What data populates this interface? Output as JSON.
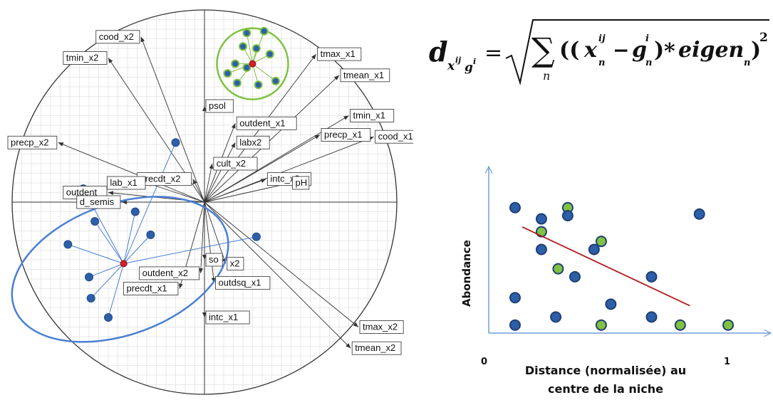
{
  "biplot": {
    "variables": [
      {
        "label": "cood_x2",
        "end": [
          -0.33,
          0.86
        ]
      },
      {
        "label": "tmin_x2",
        "end": [
          -0.5,
          0.75
        ]
      },
      {
        "label": "tmax_x1",
        "end": [
          0.58,
          0.77
        ]
      },
      {
        "label": "tmean_x1",
        "end": [
          0.7,
          0.66
        ]
      },
      {
        "label": "psol",
        "end": [
          0.0,
          0.5
        ]
      },
      {
        "label": "outdent_x1",
        "end": [
          0.16,
          0.41
        ]
      },
      {
        "label": "tmin_x1",
        "end": [
          0.75,
          0.45
        ]
      },
      {
        "label": "precp_x1",
        "end": [
          0.6,
          0.35
        ]
      },
      {
        "label": "cood_x1",
        "end": [
          0.88,
          0.34
        ]
      },
      {
        "label": "precp_x2",
        "end": [
          -0.76,
          0.31
        ]
      },
      {
        "label": "labx2",
        "end": [
          0.16,
          0.31
        ]
      },
      {
        "label": "cult_x2",
        "end": [
          0.04,
          0.2
        ]
      },
      {
        "label": "precdt_x2",
        "end": [
          -0.06,
          0.12
        ]
      },
      {
        "label": "lab_x1",
        "end": [
          -0.3,
          0.1
        ]
      },
      {
        "label": "intc_x2",
        "end": [
          0.32,
          0.12
        ]
      },
      {
        "label": "pH",
        "end": [
          0.45,
          0.1
        ]
      },
      {
        "label": "outdent",
        "end": [
          -0.5,
          0.05
        ]
      },
      {
        "label": "d_semis",
        "end": [
          -0.43,
          0.0
        ]
      },
      {
        "label": "so",
        "end": [
          0.0,
          -0.3
        ]
      },
      {
        "label": "x2",
        "end": [
          0.11,
          -0.32
        ]
      },
      {
        "label": "outdent_x2",
        "end": [
          -0.02,
          -0.37
        ]
      },
      {
        "label": "outdsq_x1",
        "end": [
          0.05,
          -0.42
        ]
      },
      {
        "label": "precdt_x1",
        "end": [
          -0.13,
          -0.45
        ]
      },
      {
        "label": "intc_x1",
        "end": [
          0.0,
          -0.6
        ]
      },
      {
        "label": "tmax_x2",
        "end": [
          0.8,
          -0.65
        ]
      },
      {
        "label": "tmean_x2",
        "end": [
          0.76,
          -0.76
        ]
      }
    ],
    "groups": [
      {
        "name": "green",
        "color": "#7fc241",
        "centroid": [
          0.25,
          0.72
        ],
        "points": [
          [
            0.22,
            0.88
          ],
          [
            0.31,
            0.89
          ],
          [
            0.2,
            0.81
          ],
          [
            0.27,
            0.8
          ],
          [
            0.34,
            0.77
          ],
          [
            0.16,
            0.72
          ],
          [
            0.22,
            0.7
          ],
          [
            0.37,
            0.63
          ],
          [
            0.17,
            0.62
          ],
          [
            0.28,
            0.61
          ],
          [
            0.12,
            0.67
          ]
        ]
      },
      {
        "name": "blue",
        "color": "#4a7fd4",
        "centroid": [
          -0.42,
          -0.32
        ],
        "points": [
          [
            -0.15,
            0.31
          ],
          [
            -0.63,
            0.07
          ],
          [
            -0.71,
            -0.22
          ],
          [
            -0.6,
            -0.39
          ],
          [
            -0.57,
            -0.1
          ],
          [
            -0.28,
            -0.17
          ],
          [
            -0.36,
            -0.05
          ],
          [
            -0.59,
            -0.5
          ],
          [
            -0.5,
            -0.6
          ],
          [
            0.27,
            -0.18
          ]
        ]
      }
    ]
  },
  "formula": {
    "lhs": "d",
    "lhs_sub_x": "x",
    "lhs_sub_x_sup": "ij",
    "lhs_sub_g": "g",
    "lhs_sub_g_sup": "i",
    "equals": "=",
    "sigma": "∑",
    "sigma_sub": "n",
    "open": "((",
    "x": "x",
    "x_sup": "ij",
    "x_sub": "n",
    "minus": "−",
    "g": "g",
    "g_sup": "i",
    "g_sub": "n",
    "close": ")",
    "times": "*",
    "eigen": "eigen",
    "eigen_sub": "n",
    "close2": ")",
    "power": "2"
  },
  "niche_chart": {
    "ylabel": "Abondance",
    "xlabel_line1": "Distance (normalisée) au",
    "xlabel_line2": "centre de la niche",
    "x_tick_0": "0",
    "x_tick_1": "1",
    "xlim": [
      0,
      1
    ],
    "ylim": [
      0,
      1
    ],
    "points": [
      {
        "x": 0.11,
        "y": 0.78,
        "color": "#2d5fa8"
      },
      {
        "x": 0.22,
        "y": 0.71,
        "color": "#2d5fa8"
      },
      {
        "x": 0.33,
        "y": 0.78,
        "color": "#7fc241"
      },
      {
        "x": 0.33,
        "y": 0.73,
        "color": "#2d5fa8"
      },
      {
        "x": 0.22,
        "y": 0.63,
        "color": "#7fc241"
      },
      {
        "x": 0.22,
        "y": 0.52,
        "color": "#2d5fa8"
      },
      {
        "x": 0.47,
        "y": 0.57,
        "color": "#7fc241"
      },
      {
        "x": 0.44,
        "y": 0.52,
        "color": "#2d5fa8"
      },
      {
        "x": 0.88,
        "y": 0.74,
        "color": "#2d5fa8"
      },
      {
        "x": 0.29,
        "y": 0.4,
        "color": "#7fc241"
      },
      {
        "x": 0.36,
        "y": 0.35,
        "color": "#2d5fa8"
      },
      {
        "x": 0.68,
        "y": 0.35,
        "color": "#2d5fa8"
      },
      {
        "x": 0.11,
        "y": 0.22,
        "color": "#2d5fa8"
      },
      {
        "x": 0.51,
        "y": 0.18,
        "color": "#2d5fa8"
      },
      {
        "x": 0.11,
        "y": 0.05,
        "color": "#2d5fa8"
      },
      {
        "x": 0.28,
        "y": 0.1,
        "color": "#2d5fa8"
      },
      {
        "x": 0.47,
        "y": 0.05,
        "color": "#7fc241"
      },
      {
        "x": 0.68,
        "y": 0.1,
        "color": "#2d5fa8"
      },
      {
        "x": 0.8,
        "y": 0.05,
        "color": "#7fc241"
      },
      {
        "x": 1.0,
        "y": 0.05,
        "color": "#7fc241"
      }
    ],
    "trend": {
      "from": [
        0.14,
        0.66
      ],
      "to": [
        0.84,
        0.17
      ],
      "color": "#b01c1c"
    }
  }
}
